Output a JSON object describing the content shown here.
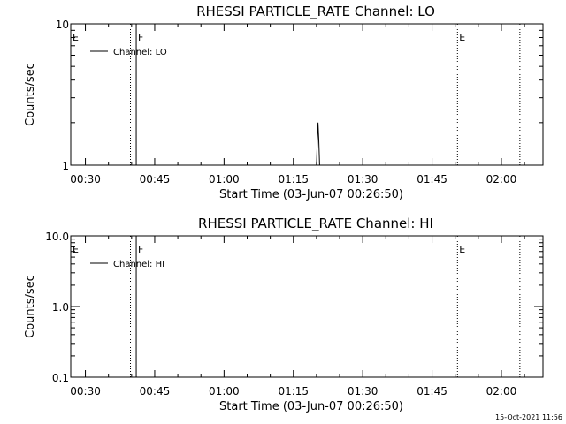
{
  "chart_data": [
    {
      "type": "line",
      "title": "RHESSI PARTICLE_RATE Channel: LO",
      "xlabel": "Start Time (03-Jun-07 00:26:50)",
      "ylabel": "Counts/sec",
      "yscale": "log",
      "ylim": [
        1,
        10
      ],
      "ytick_labels": [
        "1",
        "10"
      ],
      "ytick_values": [
        1,
        10
      ],
      "xlim": [
        "00:26:50",
        "02:09:00"
      ],
      "xtick_labels": [
        "00:30",
        "00:45",
        "01:00",
        "01:15",
        "01:30",
        "01:45",
        "02:00"
      ],
      "xtick_values": [
        "00:30",
        "00:45",
        "01:00",
        "01:15",
        "01:30",
        "01:45",
        "02:00"
      ],
      "legend": "Channel: LO",
      "legend_position": "top-left",
      "series": [
        {
          "name": "Channel: LO",
          "x": [
            "01:19:30",
            "01:20:00",
            "01:20:10",
            "01:20:20",
            "01:20:30",
            "01:20:40",
            "01:21:00"
          ],
          "y": [
            1.0,
            1.0,
            1.5,
            2.0,
            1.5,
            1.0,
            1.0
          ]
        }
      ],
      "events": [
        {
          "label": "E",
          "time": "00:26:50",
          "style": "dotted"
        },
        {
          "label": "",
          "time": "00:39:45",
          "style": "dotted"
        },
        {
          "label": "F",
          "time": "00:41:00",
          "style": "solid"
        },
        {
          "label": "E",
          "time": "01:50:30",
          "style": "dotted"
        },
        {
          "label": "",
          "time": "02:04:00",
          "style": "dotted"
        }
      ]
    },
    {
      "type": "line",
      "title": "RHESSI PARTICLE_RATE Channel: HI",
      "xlabel": "Start Time (03-Jun-07 00:26:50)",
      "ylabel": "Counts/sec",
      "yscale": "log",
      "ylim": [
        0.1,
        10
      ],
      "ytick_labels": [
        "0.1",
        "1.0",
        "10.0"
      ],
      "ytick_values": [
        0.1,
        1,
        10
      ],
      "xlim": [
        "00:26:50",
        "02:09:00"
      ],
      "xtick_labels": [
        "00:30",
        "00:45",
        "01:00",
        "01:15",
        "01:30",
        "01:45",
        "02:00"
      ],
      "xtick_values": [
        "00:30",
        "00:45",
        "01:00",
        "01:15",
        "01:30",
        "01:45",
        "02:00"
      ],
      "legend": "Channel: HI",
      "legend_position": "top-left",
      "series": [],
      "events": [
        {
          "label": "E",
          "time": "00:26:50",
          "style": "dotted"
        },
        {
          "label": "",
          "time": "00:39:45",
          "style": "dotted"
        },
        {
          "label": "F",
          "time": "00:41:00",
          "style": "solid"
        },
        {
          "label": "E",
          "time": "01:50:30",
          "style": "dotted"
        },
        {
          "label": "",
          "time": "02:04:00",
          "style": "dotted"
        }
      ]
    }
  ],
  "footer": {
    "timestamp": "15-Oct-2021 11:56"
  },
  "colors": {
    "background": "#ffffff",
    "ink": "#000000"
  }
}
